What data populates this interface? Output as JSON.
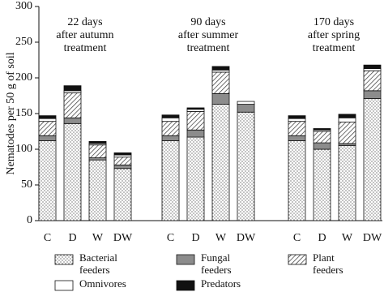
{
  "chart_data": {
    "type": "stacked_bar",
    "y_label": "Nematodes per 50 g of soil",
    "categories": [
      "C",
      "D",
      "W",
      "DW",
      "C",
      "D",
      "W",
      "DW",
      "C",
      "D",
      "W",
      "DW"
    ],
    "annotations": [
      "22 days\nafter autumn\ntreatment",
      "90 days\nafter summer\ntreatment",
      "170 days\nafter spring\ntreatment"
    ],
    "ylim": [
      0,
      300
    ],
    "yticks": [
      0,
      50,
      100,
      150,
      200,
      250,
      300
    ],
    "series": [
      {
        "name": "Bacterial\nfeeders",
        "color": "#ffffff",
        "values": [
          112,
          136,
          85,
          73,
          112,
          117,
          163,
          152,
          112,
          100,
          105,
          171
        ]
      },
      {
        "name": "Fungal\nfeeders",
        "color": "#8c8c8c",
        "values": [
          7,
          8,
          3,
          5,
          7,
          10,
          15,
          11,
          7,
          9,
          3,
          11
        ]
      },
      {
        "name": "Plant\nfeeders",
        "color": "#ffffff",
        "values": [
          20,
          35,
          18,
          11,
          20,
          26,
          30,
          0,
          20,
          16,
          30,
          28
        ]
      },
      {
        "name": "Omnivores",
        "color": "#ffffff",
        "values": [
          4,
          3,
          2,
          3,
          5,
          3,
          3,
          4,
          4,
          2,
          6,
          3
        ]
      },
      {
        "name": "Predators",
        "color": "#111111",
        "values": [
          4,
          7,
          3,
          3,
          4,
          2,
          5,
          0,
          4,
          2,
          5,
          5
        ]
      }
    ]
  }
}
